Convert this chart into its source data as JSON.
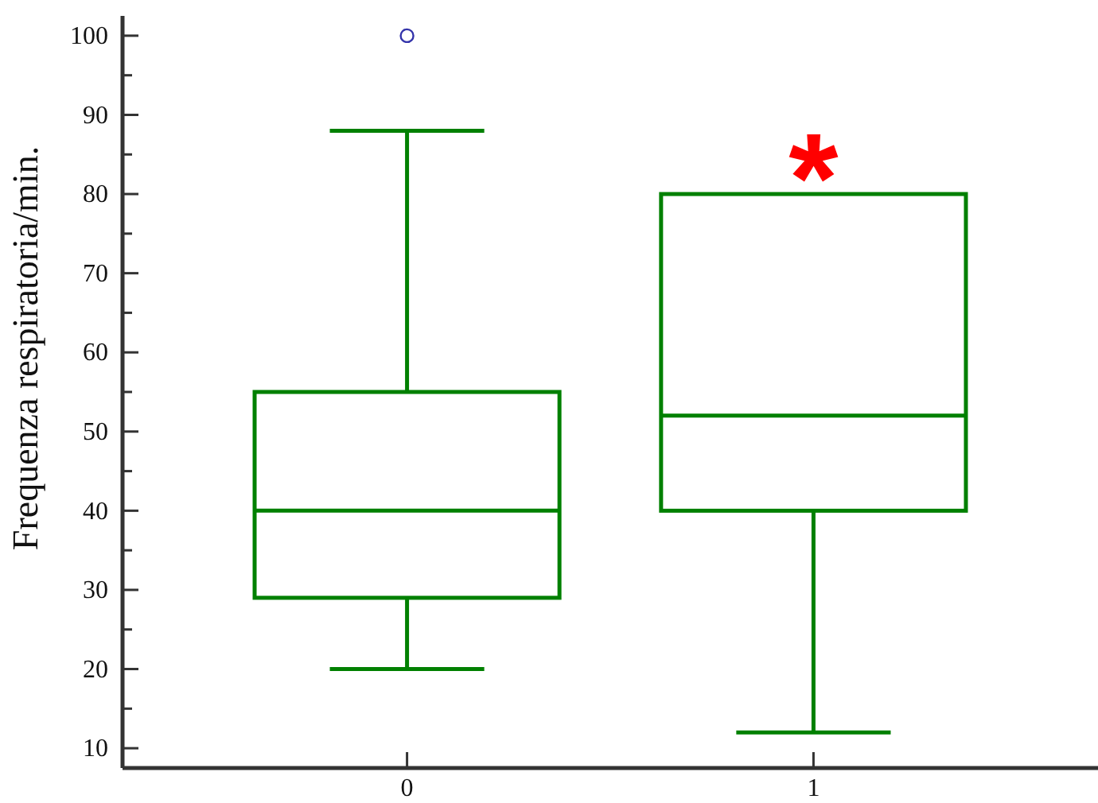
{
  "chart_data": {
    "type": "box",
    "ylabel": "Frequenza respiratoria/min.",
    "categories": [
      "0",
      "1"
    ],
    "series": [
      {
        "color": "#008000",
        "boxes": [
          {
            "low": 20,
            "q1": 29,
            "median": 40,
            "q3": 55,
            "high": 88,
            "outliers": [
              100
            ]
          },
          {
            "low": 12,
            "q1": 40,
            "median": 52,
            "q3": 80,
            "high": 80
          }
        ]
      }
    ],
    "ylim": [
      7.5,
      102.5
    ],
    "yticks": [
      10,
      {
        "value": 15,
        "label": null
      },
      20,
      {
        "value": 25,
        "label": null
      },
      30,
      {
        "value": 35,
        "label": null
      },
      40,
      {
        "value": 45,
        "label": null
      },
      50,
      {
        "value": 55,
        "label": null
      },
      60,
      {
        "value": 65,
        "label": null
      },
      70,
      {
        "value": 75,
        "label": null
      },
      80,
      {
        "value": 85,
        "label": null
      },
      90,
      {
        "value": 95,
        "label": null
      },
      100
    ],
    "annotations": [
      "*"
    ]
  }
}
